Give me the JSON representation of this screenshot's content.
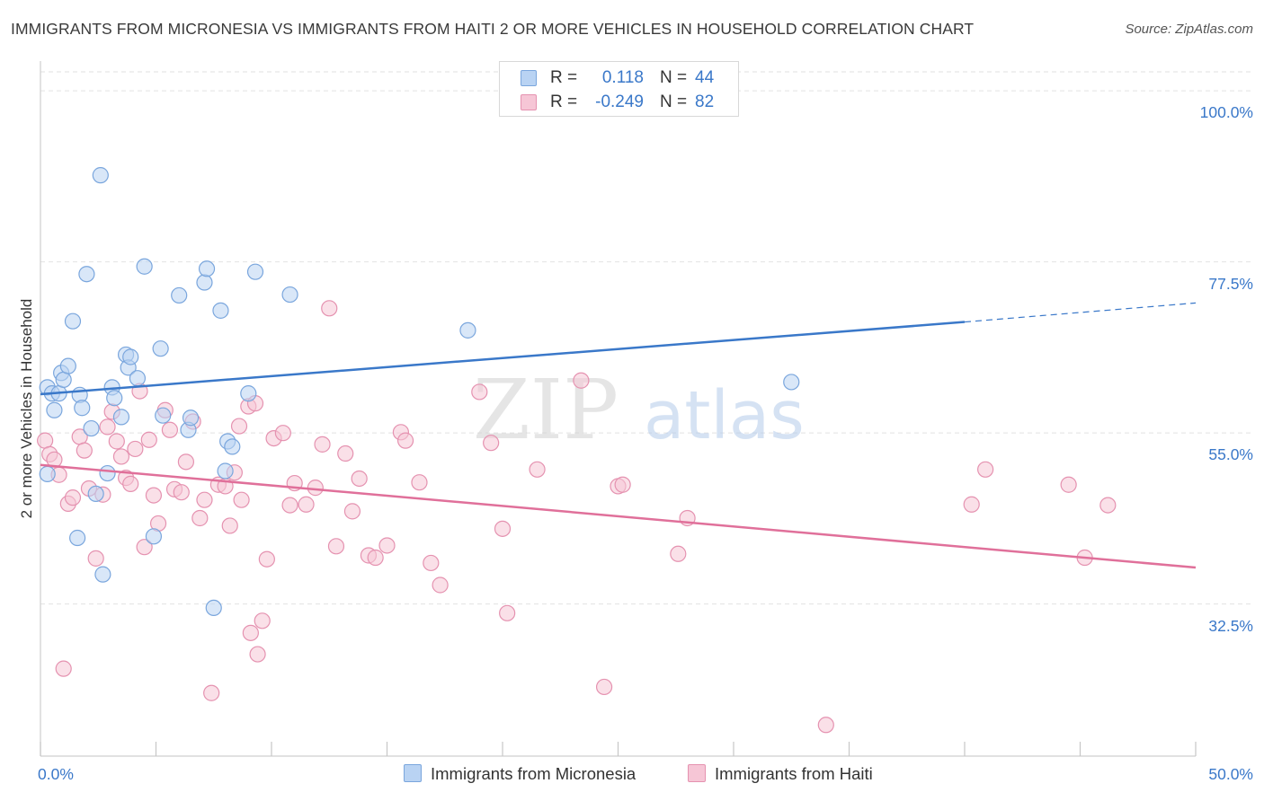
{
  "title": "IMMIGRANTS FROM MICRONESIA VS IMMIGRANTS FROM HAITI 2 OR MORE VEHICLES IN HOUSEHOLD CORRELATION CHART",
  "source": "Source: ZipAtlas.com",
  "watermark": {
    "zip": "ZIP",
    "atlas": "atlas"
  },
  "colors": {
    "blue_fill": "#b9d3f3",
    "blue_stroke": "#7aa6dd",
    "blue_line": "#3a78c9",
    "pink_fill": "#f6c6d6",
    "pink_stroke": "#e592b0",
    "pink_line": "#e0709a",
    "tick_text": "#3a78c9",
    "grid": "#e2e2e2"
  },
  "legend": {
    "rows": [
      {
        "r_label": "R =",
        "r_value": "0.118",
        "n_label": "N =",
        "n_value": "44"
      },
      {
        "r_label": "R =",
        "r_value": "-0.249",
        "n_label": "N =",
        "n_value": "82"
      }
    ]
  },
  "chart_data": {
    "type": "scatter",
    "title": "IMMIGRANTS FROM MICRONESIA VS IMMIGRANTS FROM HAITI 2 OR MORE VEHICLES IN HOUSEHOLD CORRELATION CHART",
    "xlabel": "",
    "ylabel": "2 or more Vehicles in Household",
    "xlim": [
      0,
      50
    ],
    "ylim": [
      12.5,
      102.5
    ],
    "x_tick_labels": [
      "0.0%",
      "50.0%"
    ],
    "y_ticks": [
      32.5,
      55.0,
      77.5,
      100.0
    ],
    "y_tick_labels": [
      "32.5%",
      "55.0%",
      "77.5%",
      "100.0%"
    ],
    "grid": true,
    "legend_position": "top-center",
    "series": [
      {
        "name": "Immigrants from Micronesia",
        "r": 0.118,
        "n": 44,
        "trend": {
          "x0": 0,
          "y0": 60.1,
          "x1": 40,
          "y1": 69.6,
          "dash_to_x": 50,
          "dash_to_y": 72.1
        },
        "points": [
          [
            0.3,
            49.6
          ],
          [
            0.3,
            61.0
          ],
          [
            0.5,
            60.2
          ],
          [
            0.6,
            58.0
          ],
          [
            0.8,
            60.2
          ],
          [
            0.9,
            62.9
          ],
          [
            1.0,
            62.0
          ],
          [
            1.2,
            63.8
          ],
          [
            1.4,
            69.7
          ],
          [
            1.6,
            41.2
          ],
          [
            1.7,
            60.0
          ],
          [
            1.8,
            58.3
          ],
          [
            2.0,
            75.9
          ],
          [
            2.2,
            55.6
          ],
          [
            2.4,
            47.0
          ],
          [
            2.6,
            88.9
          ],
          [
            2.7,
            36.4
          ],
          [
            2.9,
            49.7
          ],
          [
            3.1,
            61.0
          ],
          [
            3.2,
            59.6
          ],
          [
            3.5,
            57.1
          ],
          [
            3.7,
            65.3
          ],
          [
            3.8,
            63.6
          ],
          [
            3.9,
            65.0
          ],
          [
            4.2,
            62.2
          ],
          [
            4.5,
            76.9
          ],
          [
            4.9,
            41.4
          ],
          [
            5.2,
            66.1
          ],
          [
            5.3,
            57.3
          ],
          [
            6.0,
            73.1
          ],
          [
            6.4,
            55.4
          ],
          [
            6.5,
            57.0
          ],
          [
            7.1,
            74.8
          ],
          [
            7.2,
            76.6
          ],
          [
            7.5,
            32.0
          ],
          [
            7.8,
            71.1
          ],
          [
            8.0,
            50.0
          ],
          [
            8.1,
            53.9
          ],
          [
            8.3,
            53.2
          ],
          [
            9.0,
            60.2
          ],
          [
            9.3,
            76.2
          ],
          [
            10.8,
            73.2
          ],
          [
            18.5,
            68.5
          ],
          [
            32.5,
            61.7
          ]
        ]
      },
      {
        "name": "Immigrants from Haiti",
        "r": -0.249,
        "n": 82,
        "trend": {
          "x0": 0,
          "y0": 50.8,
          "x1": 50,
          "y1": 37.3
        },
        "points": [
          [
            0.2,
            54.0
          ],
          [
            0.4,
            52.2
          ],
          [
            0.6,
            51.5
          ],
          [
            0.8,
            49.5
          ],
          [
            1.0,
            24.0
          ],
          [
            1.2,
            45.7
          ],
          [
            1.4,
            46.5
          ],
          [
            1.7,
            54.5
          ],
          [
            1.9,
            52.7
          ],
          [
            2.1,
            47.7
          ],
          [
            2.4,
            38.5
          ],
          [
            2.7,
            46.9
          ],
          [
            2.9,
            55.8
          ],
          [
            3.1,
            57.8
          ],
          [
            3.3,
            53.9
          ],
          [
            3.5,
            51.9
          ],
          [
            3.7,
            49.1
          ],
          [
            3.9,
            48.3
          ],
          [
            4.1,
            52.9
          ],
          [
            4.3,
            60.5
          ],
          [
            4.5,
            40.0
          ],
          [
            4.7,
            54.1
          ],
          [
            4.9,
            46.8
          ],
          [
            5.1,
            43.1
          ],
          [
            5.4,
            58.0
          ],
          [
            5.6,
            55.4
          ],
          [
            5.8,
            47.6
          ],
          [
            6.1,
            47.2
          ],
          [
            6.3,
            51.2
          ],
          [
            6.6,
            56.5
          ],
          [
            6.9,
            43.8
          ],
          [
            7.1,
            46.2
          ],
          [
            7.4,
            20.8
          ],
          [
            7.7,
            48.2
          ],
          [
            8.0,
            48.0
          ],
          [
            8.2,
            42.8
          ],
          [
            8.4,
            49.8
          ],
          [
            8.7,
            46.2
          ],
          [
            9.0,
            58.5
          ],
          [
            9.3,
            58.9
          ],
          [
            8.6,
            55.9
          ],
          [
            9.1,
            28.7
          ],
          [
            9.4,
            25.9
          ],
          [
            9.6,
            30.3
          ],
          [
            9.8,
            38.4
          ],
          [
            10.1,
            54.3
          ],
          [
            10.5,
            55.0
          ],
          [
            10.8,
            45.5
          ],
          [
            11.0,
            48.4
          ],
          [
            11.5,
            45.6
          ],
          [
            11.9,
            47.8
          ],
          [
            12.2,
            53.5
          ],
          [
            12.5,
            71.4
          ],
          [
            12.8,
            40.1
          ],
          [
            13.2,
            52.3
          ],
          [
            13.5,
            44.7
          ],
          [
            13.8,
            49.0
          ],
          [
            14.2,
            38.9
          ],
          [
            14.5,
            38.6
          ],
          [
            15.0,
            40.2
          ],
          [
            15.6,
            55.1
          ],
          [
            15.8,
            54.0
          ],
          [
            16.4,
            48.5
          ],
          [
            16.9,
            37.9
          ],
          [
            17.3,
            35.0
          ],
          [
            19.0,
            60.4
          ],
          [
            19.5,
            53.7
          ],
          [
            20.0,
            42.4
          ],
          [
            20.2,
            31.3
          ],
          [
            21.5,
            50.2
          ],
          [
            23.4,
            61.9
          ],
          [
            24.4,
            21.6
          ],
          [
            25.0,
            48.0
          ],
          [
            25.2,
            48.2
          ],
          [
            27.6,
            39.1
          ],
          [
            28.0,
            43.8
          ],
          [
            34.0,
            16.6
          ],
          [
            40.3,
            45.6
          ],
          [
            40.9,
            50.2
          ],
          [
            44.5,
            48.2
          ],
          [
            45.2,
            38.6
          ],
          [
            46.2,
            45.5
          ]
        ]
      }
    ]
  }
}
